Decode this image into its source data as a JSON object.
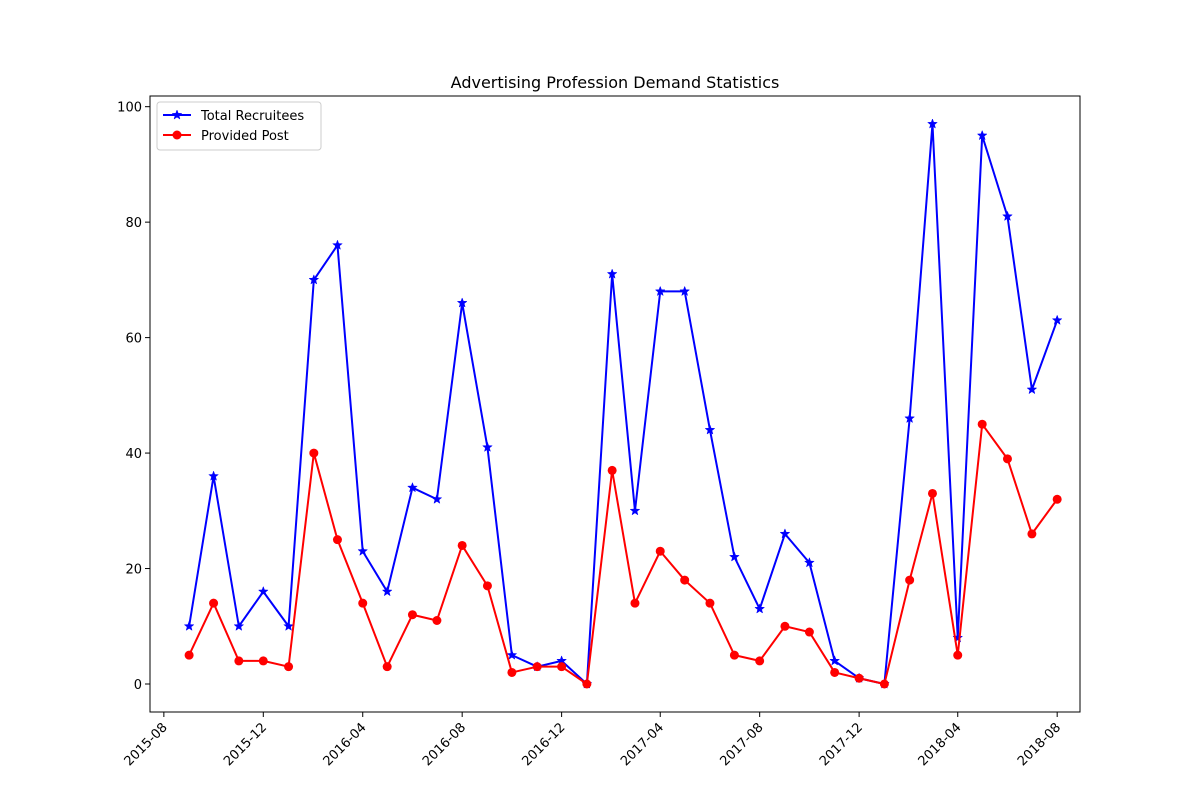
{
  "chart_data": {
    "type": "line",
    "title": "Advertising Profession Demand Statistics",
    "xlabel": "",
    "ylabel": "",
    "x": [
      "2015-09",
      "2015-10",
      "2015-11",
      "2015-12",
      "2016-01",
      "2016-02",
      "2016-03",
      "2016-04",
      "2016-05",
      "2016-06",
      "2016-07",
      "2016-08",
      "2016-09",
      "2016-10",
      "2016-11",
      "2016-12",
      "2017-01",
      "2017-02",
      "2017-03",
      "2017-04",
      "2017-05",
      "2017-06",
      "2017-07",
      "2017-08",
      "2017-09",
      "2017-10",
      "2017-11",
      "2017-12",
      "2018-01",
      "2018-02",
      "2018-03",
      "2018-04",
      "2018-05",
      "2018-06",
      "2018-07",
      "2018-08"
    ],
    "x_tick_labels": [
      "2015-08",
      "2015-12",
      "2016-04",
      "2016-08",
      "2016-12",
      "2017-04",
      "2017-08",
      "2017-12",
      "2018-04",
      "2018-08"
    ],
    "y_ticks": [
      0,
      20,
      40,
      60,
      80,
      100
    ],
    "xlim": [
      "2015-07-15",
      "2018-08-29"
    ],
    "ylim": [
      -4.85,
      101.85
    ],
    "grid": false,
    "legend_position": "top-left",
    "series": [
      {
        "name": "Total Recruitees",
        "color": "#0000ff",
        "marker": "star",
        "values": [
          10,
          36,
          10,
          16,
          10,
          70,
          76,
          23,
          16,
          34,
          32,
          66,
          41,
          5,
          3,
          4,
          0,
          71,
          30,
          68,
          68,
          44,
          22,
          13,
          26,
          21,
          4,
          1,
          0,
          46,
          97,
          8,
          95,
          81,
          51,
          63
        ]
      },
      {
        "name": "Provided Post",
        "color": "#ff0000",
        "marker": "circle",
        "values": [
          5,
          14,
          4,
          4,
          3,
          40,
          25,
          14,
          3,
          12,
          11,
          24,
          17,
          2,
          3,
          3,
          0,
          37,
          14,
          23,
          18,
          14,
          5,
          4,
          10,
          9,
          2,
          1,
          0,
          18,
          33,
          5,
          45,
          39,
          26,
          32
        ]
      }
    ]
  }
}
